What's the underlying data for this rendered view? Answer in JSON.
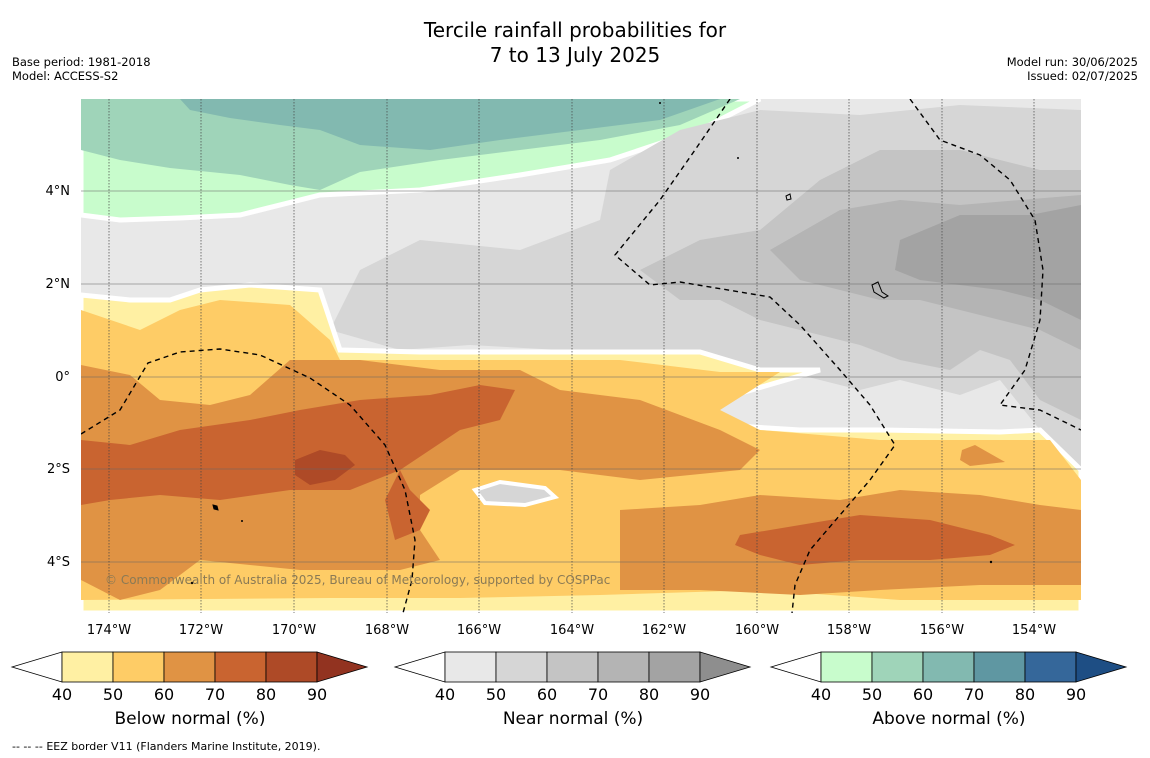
{
  "header": {
    "title_line1": "Tercile rainfall probabilities for",
    "title_line2": "7 to 13 July 2025",
    "base_period": "Base period: 1981-2018",
    "model": "Model: ACCESS-S2",
    "model_run": "Model run: 30/06/2025",
    "issued": "Issued: 02/07/2025"
  },
  "map": {
    "lat_labels": [
      "4°N",
      "2°N",
      "0°",
      "2°S",
      "4°S"
    ],
    "lon_labels": [
      "174°W",
      "172°W",
      "170°W",
      "168°W",
      "166°W",
      "164°W",
      "162°W",
      "160°W",
      "158°W",
      "156°W",
      "154°W"
    ],
    "copyright": "© Commonwealth of Australia 2025, Bureau of Meteorology, supported by COSPPac",
    "colors": {
      "below": [
        "#fff0a3",
        "#fecc66",
        "#e09344",
        "#c96430",
        "#ae4a27",
        "#923320"
      ],
      "near": [
        "#e8e8e8",
        "#d6d6d6",
        "#c4c4c4",
        "#b4b4b4",
        "#a3a3a3",
        "#8e8e8e"
      ],
      "above": [
        "#c8fccc",
        "#9fd4b9",
        "#82b9b0",
        "#5f97a2",
        "#35679a",
        "#1e4e84"
      ]
    }
  },
  "colorbars": [
    {
      "id": "below",
      "label": "Below normal (%)",
      "ticks": [
        "40",
        "50",
        "60",
        "70",
        "80",
        "90"
      ]
    },
    {
      "id": "near",
      "label": "Near normal (%)",
      "ticks": [
        "40",
        "50",
        "60",
        "70",
        "80",
        "90"
      ]
    },
    {
      "id": "above",
      "label": "Above normal (%)",
      "ticks": [
        "40",
        "50",
        "60",
        "70",
        "80",
        "90"
      ]
    }
  ],
  "footer": {
    "legend_symbol": "--  --  --",
    "eez_text": "EEZ border V11 (Flanders Marine Institute, 2019)."
  }
}
